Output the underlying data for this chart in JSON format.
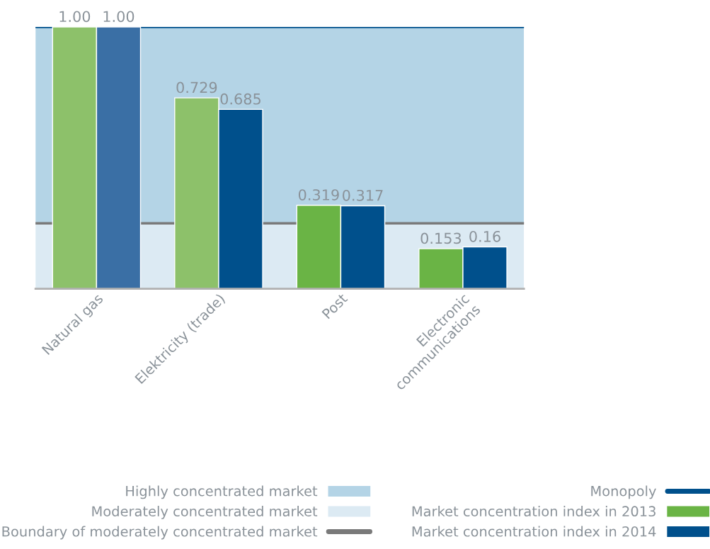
{
  "chart_data": {
    "type": "bar",
    "categories": [
      "Natural gas",
      "Elektricity (trade)",
      "Post",
      "Electronic\ncommunications"
    ],
    "series": [
      {
        "name": "Market concentration index in 2013",
        "color": "#6ab445",
        "colors": [
          "#8dc16a",
          "#8dc16a",
          "#6ab445",
          "#6ab445"
        ],
        "values": [
          1.0,
          0.729,
          0.319,
          0.153
        ],
        "value_labels": [
          "1.00",
          "0.729",
          "0.319",
          "0.153"
        ]
      },
      {
        "name": "Market concentration index in 2014",
        "color": "#00508c",
        "colors": [
          "#3a6fa5",
          "#00508c",
          "#00508c",
          "#00508c"
        ],
        "values": [
          1.0,
          0.685,
          0.317,
          0.16
        ],
        "value_labels": [
          "1.00",
          "0.685",
          "0.317",
          "0.16"
        ]
      }
    ],
    "ylim": [
      0,
      1.0
    ],
    "bands": [
      {
        "axis": "y",
        "from": 0.25,
        "to": 1.0,
        "label": "Highly concentrated market",
        "color": "#b4d4e6"
      },
      {
        "axis": "y",
        "from": 0,
        "to": 0.25,
        "label": "Moderately concentrated market",
        "color": "#dceaf3"
      }
    ],
    "ref_lines": [
      {
        "axis": "y",
        "value": 0.25,
        "label": "Boundary of moderately concentrated market",
        "color": "#7a7a7a",
        "line_style": "solid"
      },
      {
        "axis": "y",
        "value": 1.0,
        "label": "Monopoly",
        "color": "#00508c",
        "line_style": "solid"
      }
    ],
    "grid": false,
    "legend": "bottom"
  }
}
